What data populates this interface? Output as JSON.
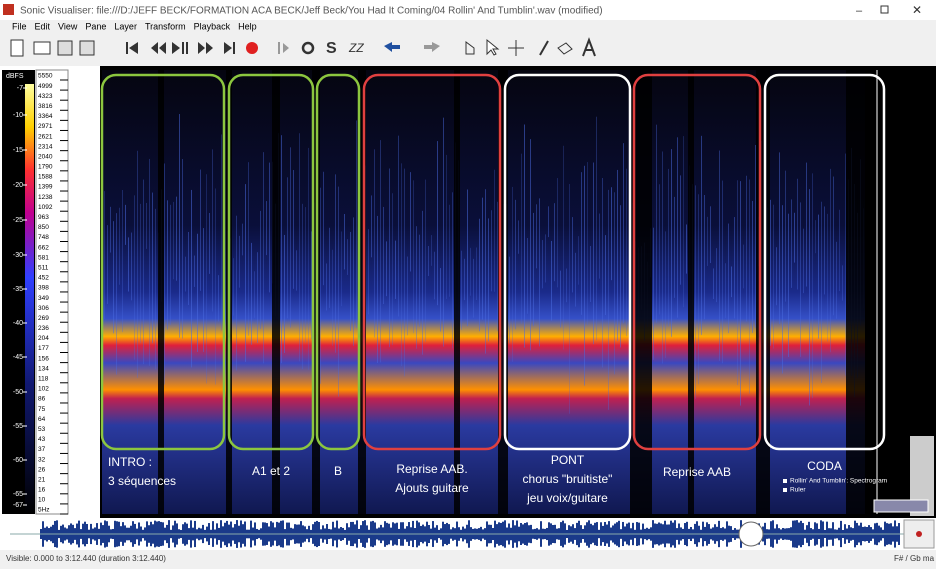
{
  "window": {
    "title": "Sonic Visualiser: file:///D:/JEFF BECK/FORMATION ACA BECK/Jeff Beck/You Had It Coming/04 Rollin' And Tumblin'.wav (modified)"
  },
  "menu": [
    "File",
    "Edit",
    "View",
    "Pane",
    "Layer",
    "Transform",
    "Playback",
    "Help"
  ],
  "scale": {
    "unit": "dBFS",
    "db_labels": [
      "-7",
      "-10",
      "-15",
      "-20",
      "-25",
      "-30",
      "-35",
      "-40",
      "-45",
      "-50",
      "-55",
      "-60",
      "-65",
      "-67"
    ],
    "freq_labels": [
      "5550",
      "4999",
      "4323",
      "3816",
      "3364",
      "2971",
      "2621",
      "2314",
      "2040",
      "1790",
      "1588",
      "1399",
      "1238",
      "1092",
      "963",
      "850",
      "748",
      "662",
      "581",
      "511",
      "452",
      "398",
      "349",
      "306",
      "269",
      "236",
      "204",
      "177",
      "156",
      "134",
      "118",
      "102",
      "86",
      "75",
      "64",
      "53",
      "43",
      "37",
      "32",
      "26",
      "21",
      "16",
      "10",
      "5Hz"
    ]
  },
  "sections": [
    {
      "lines": [
        "INTRO :",
        "3 séquences"
      ]
    },
    {
      "lines": [
        "A1 et 2"
      ]
    },
    {
      "lines": [
        "B"
      ]
    },
    {
      "lines": [
        "Reprise AAB.",
        "Ajouts guitare"
      ]
    },
    {
      "lines": [
        "PONT",
        "chorus \"bruitiste\"",
        "jeu voix/guitare"
      ]
    },
    {
      "lines": [
        "Reprise AAB"
      ]
    },
    {
      "lines": [
        "CODA"
      ]
    }
  ],
  "layers": [
    "Rollin' And Tumblin': Spectrogram",
    "Ruler"
  ],
  "status": {
    "visible": "Visible: 0.000 to 3:12.440 (duration 3:12.440)",
    "key": "F# / Gb ma"
  }
}
